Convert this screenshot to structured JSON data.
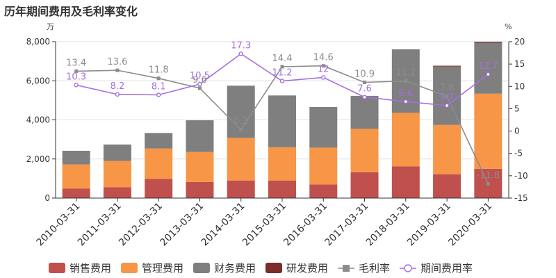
{
  "chart_data": {
    "type": "bar",
    "title": "历年期间费用及毛利率变化",
    "left_unit": "万",
    "right_unit": "%",
    "categories": [
      "2010-03-31",
      "2011-03-31",
      "2012-03-31",
      "2013-03-31",
      "2014-03-31",
      "2015-03-31",
      "2016-03-31",
      "2017-03-31",
      "2018-03-31",
      "2019-03-31",
      "2020-03-31"
    ],
    "left_axis": {
      "min": 0,
      "max": 8000,
      "ticks": [
        0,
        2000,
        4000,
        6000,
        8000
      ],
      "tick_labels": [
        "0",
        "2,000",
        "4,000",
        "6,000",
        "8,000"
      ]
    },
    "right_axis": {
      "min": -15,
      "max": 20,
      "ticks": [
        -15,
        -10,
        -5,
        0,
        5,
        10,
        15,
        20
      ],
      "tick_labels": [
        "-15",
        "-10",
        "-5",
        "0",
        "5",
        "10",
        "15",
        "20"
      ]
    },
    "bar_series": [
      {
        "name": "销售费用",
        "color": "#c0504d",
        "values": [
          480,
          560,
          980,
          820,
          900,
          900,
          700,
          1320,
          1620,
          1220,
          1500
        ]
      },
      {
        "name": "管理费用",
        "color": "#f79646",
        "values": [
          1240,
          1340,
          1560,
          1540,
          2180,
          1700,
          1880,
          2220,
          2740,
          2520,
          3840
        ]
      },
      {
        "name": "财务费用",
        "color": "#7f7f7f",
        "values": [
          700,
          840,
          790,
          1620,
          2670,
          2650,
          2080,
          1690,
          3250,
          2990,
          2610
        ]
      },
      {
        "name": "研发费用",
        "color": "#7b2c2c",
        "values": [
          0,
          0,
          0,
          0,
          0,
          0,
          0,
          0,
          0,
          40,
          50
        ]
      }
    ],
    "line_series": [
      {
        "name": "毛利率",
        "color": "#8c8c8c",
        "label_color": "#8c8c8c",
        "marker": "square",
        "values": [
          13.4,
          13.6,
          11.8,
          9.6,
          0.3,
          14.4,
          14.6,
          10.9,
          11.2,
          7.8,
          -11.8
        ],
        "labels": [
          "13.4",
          "13.6",
          "11.8",
          "9.6",
          "0.3",
          "14.4",
          "14.6",
          "10.9",
          "11.2",
          "7.8",
          "-11.8"
        ]
      },
      {
        "name": "期间费用率",
        "color": "#a66ee0",
        "label_color": "#a66ee0",
        "marker": "circle",
        "values": [
          10.3,
          8.2,
          8.1,
          10.5,
          17.3,
          11.2,
          12,
          7.6,
          6.6,
          5.7,
          12.7
        ],
        "labels": [
          "10.3",
          "8.2",
          "8.1",
          "10.5",
          "17.3",
          "11.2",
          "12",
          "7.6",
          "6.6",
          "5.7",
          "12.7"
        ]
      }
    ],
    "grid": true,
    "legend_position": "bottom"
  }
}
